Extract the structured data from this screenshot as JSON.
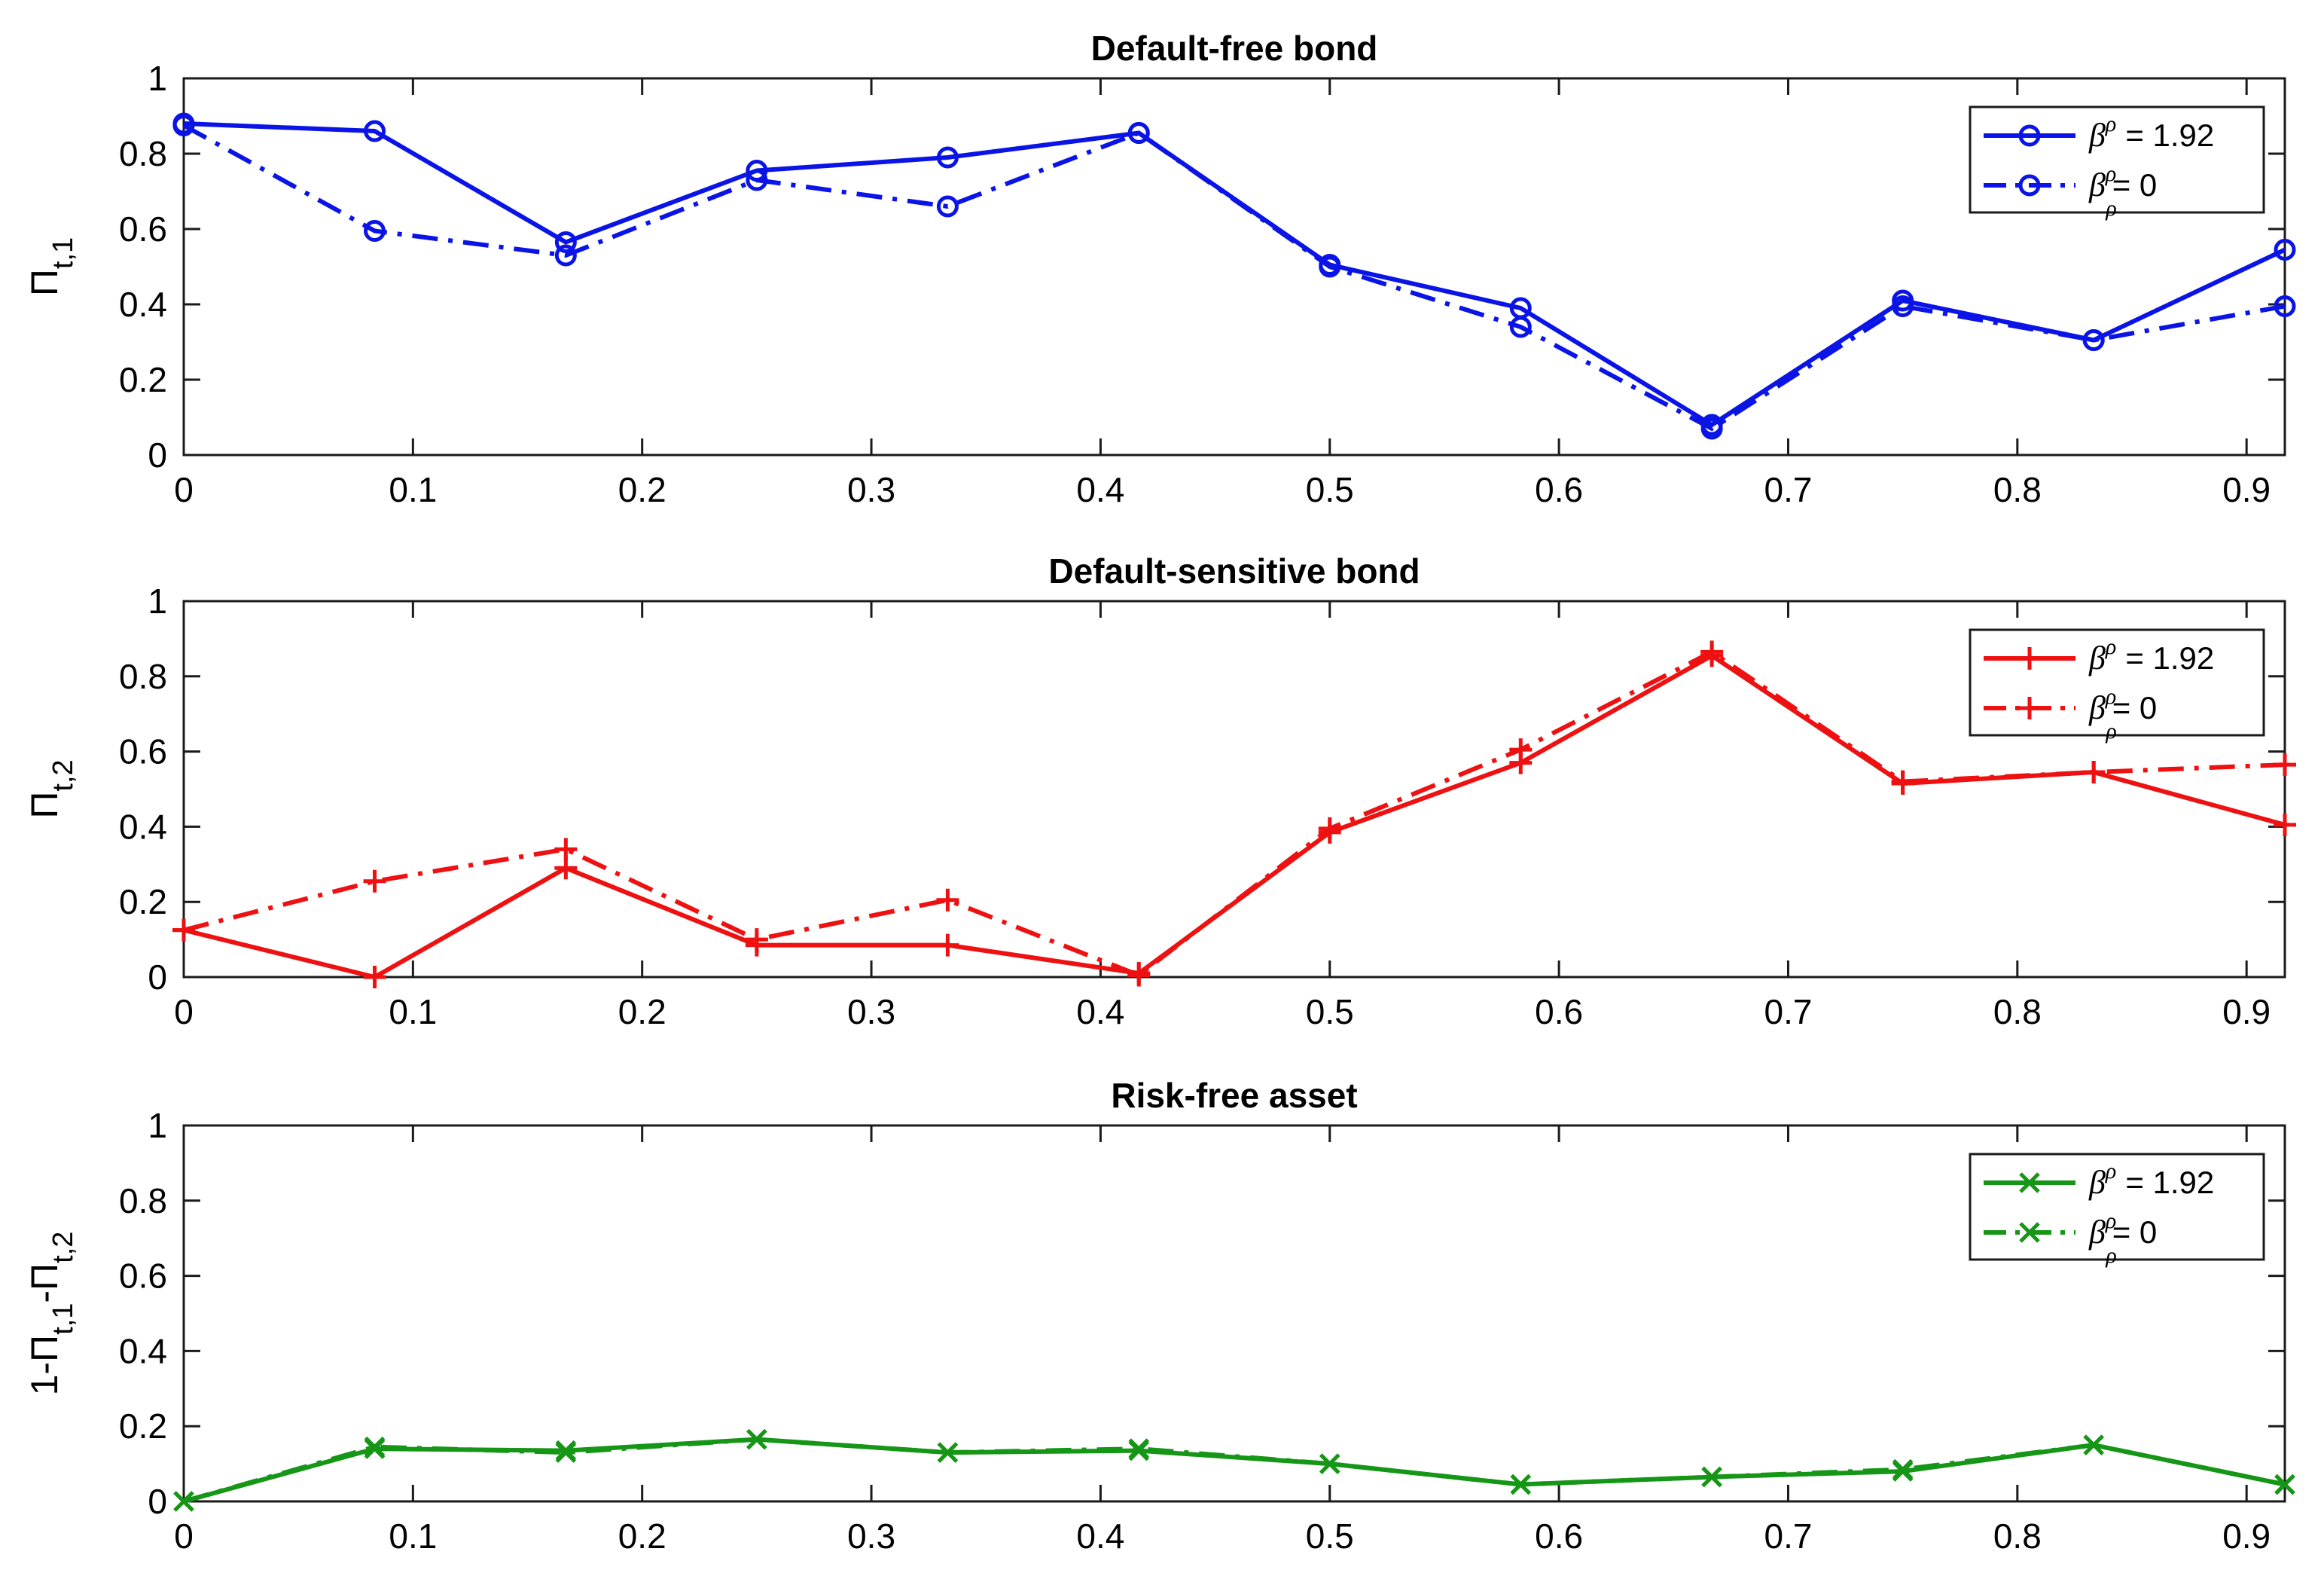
{
  "chart_data": [
    {
      "type": "line",
      "title": "Default-free bond",
      "ylabel": {
        "base": "Π",
        "sub": "t,1"
      },
      "xlim": [
        0,
        0.9167
      ],
      "ylim": [
        0,
        1
      ],
      "xticks": [
        "0",
        "0.1",
        "0.2",
        "0.3",
        "0.4",
        "0.5",
        "0.6",
        "0.7",
        "0.8",
        "0.9"
      ],
      "yticks": [
        "0",
        "0.2",
        "0.4",
        "0.6",
        "0.8",
        "1"
      ],
      "color": "#0a14e6",
      "marker": "circle",
      "legend_position": "top-right",
      "x": [
        0,
        0.0833,
        0.1667,
        0.25,
        0.3333,
        0.4167,
        0.5,
        0.5833,
        0.6667,
        0.75,
        0.8333,
        0.9167
      ],
      "series": [
        {
          "name": {
            "symbol": "β",
            "sup": "ρ",
            "sub": "",
            "value": "= 1.92"
          },
          "style": "solid",
          "values": [
            0.88,
            0.86,
            0.565,
            0.755,
            0.79,
            0.855,
            0.505,
            0.39,
            0.08,
            0.41,
            0.305,
            0.545
          ]
        },
        {
          "name": {
            "symbol": "β",
            "sup": "ρ",
            "sub": "ρ",
            "value": "= 0"
          },
          "style": "dashdot",
          "values": [
            0.875,
            0.595,
            0.53,
            0.73,
            0.66,
            0.855,
            0.5,
            0.34,
            0.07,
            0.395,
            0.305,
            0.395
          ]
        }
      ]
    },
    {
      "type": "line",
      "title": "Default-sensitive bond",
      "ylabel": {
        "base": "Π",
        "sub": "t,2"
      },
      "xlim": [
        0,
        0.9167
      ],
      "ylim": [
        0,
        1
      ],
      "xticks": [
        "0",
        "0.1",
        "0.2",
        "0.3",
        "0.4",
        "0.5",
        "0.6",
        "0.7",
        "0.8",
        "0.9"
      ],
      "yticks": [
        "0",
        "0.2",
        "0.4",
        "0.6",
        "0.8",
        "1"
      ],
      "color": "#ee1111",
      "marker": "plus",
      "legend_position": "top-right",
      "x": [
        0,
        0.0833,
        0.1667,
        0.25,
        0.3333,
        0.4167,
        0.5,
        0.5833,
        0.6667,
        0.75,
        0.8333,
        0.9167
      ],
      "series": [
        {
          "name": {
            "symbol": "β",
            "sup": "ρ",
            "sub": "",
            "value": "= 1.92"
          },
          "style": "solid",
          "values": [
            0.125,
            0.0,
            0.29,
            0.085,
            0.085,
            0.01,
            0.385,
            0.57,
            0.855,
            0.515,
            0.545,
            0.405
          ]
        },
        {
          "name": {
            "symbol": "β",
            "sup": "ρ",
            "sub": "ρ",
            "value": "= 0"
          },
          "style": "dashdot",
          "values": [
            0.125,
            0.255,
            0.34,
            0.1,
            0.205,
            0.005,
            0.395,
            0.605,
            0.865,
            0.52,
            0.545,
            0.565
          ]
        }
      ]
    },
    {
      "type": "line",
      "title": "Risk-free asset",
      "ylabel": {
        "base": "1-Π",
        "sub": "t,1",
        "mid": "-Π",
        "sub2": "t,2"
      },
      "xlim": [
        0,
        0.9167
      ],
      "ylim": [
        0,
        1
      ],
      "xticks": [
        "0",
        "0.1",
        "0.2",
        "0.3",
        "0.4",
        "0.5",
        "0.6",
        "0.7",
        "0.8",
        "0.9"
      ],
      "yticks": [
        "0",
        "0.2",
        "0.4",
        "0.6",
        "0.8",
        "1"
      ],
      "color": "#169616",
      "marker": "x",
      "legend_position": "top-right",
      "x": [
        0,
        0.0833,
        0.1667,
        0.25,
        0.3333,
        0.4167,
        0.5,
        0.5833,
        0.6667,
        0.75,
        0.8333,
        0.9167
      ],
      "series": [
        {
          "name": {
            "symbol": "β",
            "sup": "ρ",
            "sub": "",
            "value": "= 1.92"
          },
          "style": "solid",
          "values": [
            0.0,
            0.14,
            0.135,
            0.165,
            0.13,
            0.135,
            0.1,
            0.045,
            0.065,
            0.08,
            0.15,
            0.045
          ]
        },
        {
          "name": {
            "symbol": "β",
            "sup": "ρ",
            "sub": "ρ",
            "value": "= 0"
          },
          "style": "dashdot",
          "values": [
            0.0,
            0.145,
            0.13,
            0.165,
            0.13,
            0.14,
            0.1,
            0.045,
            0.065,
            0.085,
            0.15,
            0.045
          ]
        }
      ]
    }
  ]
}
